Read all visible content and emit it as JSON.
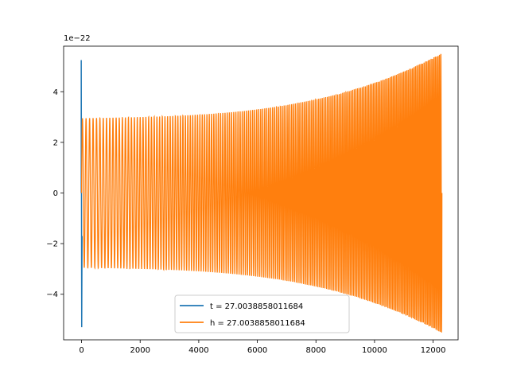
{
  "chart_data": {
    "type": "line",
    "title": "",
    "xlabel": "",
    "ylabel": "",
    "xlim": [
      -612,
      12852
    ],
    "ylim": [
      -5.8,
      5.8
    ],
    "y_offset_label": "1e−22",
    "xticks": [
      0,
      2000,
      4000,
      6000,
      8000,
      10000,
      12000
    ],
    "xtick_labels": [
      "0",
      "2000",
      "4000",
      "6000",
      "8000",
      "10000",
      "12000"
    ],
    "yticks": [
      -4,
      -2,
      0,
      2,
      4
    ],
    "ytick_labels": [
      "−4",
      "−2",
      "0",
      "2",
      "4"
    ],
    "grid": false,
    "legend_position": "lower center",
    "series": [
      {
        "name": "t = 27.0038858011684",
        "color": "#1f77b4",
        "description_values": {
          "spike_x": 0,
          "spike_min": -5.3,
          "spike_max": 5.25
        }
      },
      {
        "name": "h = 27.0038858011684",
        "color": "#ff7f0e",
        "description_values": {
          "x_start": 0,
          "x_end": 12300,
          "amp_start": 2.95,
          "amp_end": 5.28,
          "cycles": 180
        }
      }
    ]
  }
}
